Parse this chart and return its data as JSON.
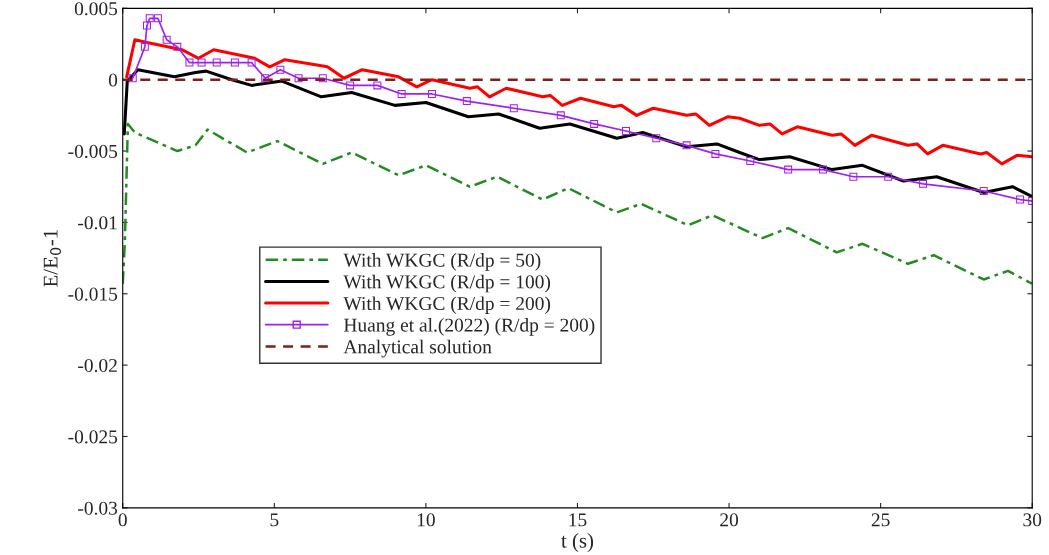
{
  "chart_data": {
    "type": "line",
    "xlabel": "t (s)",
    "ylabel": "E/E$_{0}$-1",
    "xlim": [
      0,
      30
    ],
    "ylim": [
      -0.03,
      0.005
    ],
    "xticks": [
      0,
      5,
      10,
      15,
      20,
      25,
      30
    ],
    "yticks": [
      0.005,
      0,
      -0.005,
      -0.01,
      -0.015,
      -0.02,
      -0.025,
      -0.03
    ],
    "grid": false,
    "legend": "bottom left",
    "series": [
      {
        "name": "With WKGC (R/dp = 50)",
        "color": "#228b22",
        "line_style": "dashdot",
        "marker": "none",
        "x": [
          0,
          0.07,
          0.17,
          0.4,
          1.8,
          2.4,
          2.8,
          4.1,
          5.1,
          6.6,
          7.55,
          9.1,
          10.0,
          11.45,
          12.35,
          13.85,
          14.7,
          16.3,
          17.1,
          18.65,
          19.45,
          21.1,
          21.95,
          23.55,
          24.4,
          25.9,
          26.75,
          28.4,
          29.2,
          30
        ],
        "values": [
          -0.0143,
          -0.0114,
          -0.0031,
          -0.0037,
          -0.005,
          -0.0046,
          -0.0035,
          -0.0051,
          -0.0043,
          -0.0059,
          -0.0051,
          -0.0067,
          -0.006,
          -0.0075,
          -0.0068,
          -0.0084,
          -0.0076,
          -0.0093,
          -0.0087,
          -0.0102,
          -0.0095,
          -0.0111,
          -0.0104,
          -0.0121,
          -0.0115,
          -0.0129,
          -0.0123,
          -0.014,
          -0.0134,
          -0.0143
        ]
      },
      {
        "name": "With WKGC (R/dp = 100)",
        "color": "#000000",
        "line_style": "solid",
        "marker": "none",
        "x": [
          0.05,
          0.15,
          0.5,
          1.7,
          2.4,
          2.75,
          3.6,
          4.25,
          5.25,
          6.55,
          7.55,
          8.98,
          10.0,
          11.4,
          12.4,
          13.75,
          14.75,
          16.3,
          17.15,
          18.6,
          19.6,
          20.35,
          21.0,
          22.0,
          23.4,
          24.4,
          25.75,
          26.85,
          28.4,
          29.35,
          30
        ],
        "values": [
          -0.0038,
          -0.0001,
          0.0007,
          0.0002,
          0.0005,
          0.0006,
          0.0,
          -0.0004,
          -0.0001,
          -0.0012,
          -0.0009,
          -0.0018,
          -0.0016,
          -0.0026,
          -0.0024,
          -0.0034,
          -0.0031,
          -0.0041,
          -0.0037,
          -0.0047,
          -0.0045,
          -0.0051,
          -0.0056,
          -0.0054,
          -0.0063,
          -0.006,
          -0.0071,
          -0.0068,
          -0.0079,
          -0.0075,
          -0.0082
        ]
      },
      {
        "name": "With WKGC (R/dp = 200)",
        "color": "#ff0000",
        "line_style": "solid",
        "marker": "none",
        "x": [
          0.13,
          0.4,
          0.8,
          1.95,
          2.5,
          3.0,
          4.35,
          4.85,
          5.35,
          6.75,
          7.3,
          7.9,
          9.1,
          9.7,
          10.2,
          11.45,
          11.7,
          12.1,
          12.65,
          13.85,
          14.1,
          14.5,
          15.1,
          16.2,
          16.45,
          16.95,
          17.5,
          18.6,
          18.9,
          19.35,
          19.95,
          20.35,
          21.0,
          21.35,
          21.75,
          22.25,
          23.4,
          23.7,
          24.15,
          24.7,
          25.9,
          26.2,
          26.55,
          27.05,
          28.3,
          28.5,
          29.0,
          29.5,
          30
        ],
        "values": [
          0.0002,
          0.0028,
          0.0026,
          0.0021,
          0.0015,
          0.0021,
          0.0015,
          0.0009,
          0.0014,
          0.0009,
          0.0001,
          0.0007,
          0.0002,
          -0.0005,
          0.0,
          -0.0006,
          -0.0005,
          -0.0012,
          -0.0006,
          -0.0012,
          -0.0011,
          -0.0018,
          -0.0013,
          -0.0019,
          -0.0018,
          -0.0025,
          -0.002,
          -0.0025,
          -0.0024,
          -0.0032,
          -0.0026,
          -0.0027,
          -0.0032,
          -0.0031,
          -0.0038,
          -0.0033,
          -0.0039,
          -0.0038,
          -0.0046,
          -0.0039,
          -0.0046,
          -0.0045,
          -0.0052,
          -0.0046,
          -0.0052,
          -0.0051,
          -0.0059,
          -0.0053,
          -0.0054
        ]
      },
      {
        "name": "Huang et al.(2022) (R/dp = 200)",
        "color": "#a020f0",
        "line_style": "solid",
        "marker": "square",
        "x": [
          0.33,
          0.73,
          0.8,
          0.89,
          1.16,
          1.45,
          1.8,
          2.2,
          2.6,
          3.1,
          3.7,
          4.25,
          4.7,
          5.2,
          5.8,
          6.6,
          7.5,
          8.4,
          9.2,
          10.2,
          11.35,
          12.9,
          14.45,
          15.55,
          16.6,
          17.6,
          18.6,
          19.55,
          20.7,
          21.95,
          23.1,
          24.1,
          25.25,
          26.4,
          28.4,
          29.6,
          30
        ],
        "values": [
          0.0001,
          0.0023,
          0.0038,
          0.0043,
          0.0043,
          0.0028,
          0.0023,
          0.0012,
          0.0012,
          0.0012,
          0.0012,
          0.0012,
          0.0001,
          0.0007,
          0.0001,
          0.0001,
          -0.0004,
          -0.0004,
          -0.001,
          -0.001,
          -0.0015,
          -0.002,
          -0.0025,
          -0.0031,
          -0.0036,
          -0.0041,
          -0.0046,
          -0.0052,
          -0.0057,
          -0.0063,
          -0.0063,
          -0.0068,
          -0.0068,
          -0.0073,
          -0.0078,
          -0.0084,
          -0.0085
        ]
      },
      {
        "name": "Analytical solution",
        "color": "#7f1f1f",
        "line_style": "dashed",
        "marker": "none",
        "x": [
          0,
          30
        ],
        "values": [
          0,
          0
        ]
      }
    ]
  }
}
